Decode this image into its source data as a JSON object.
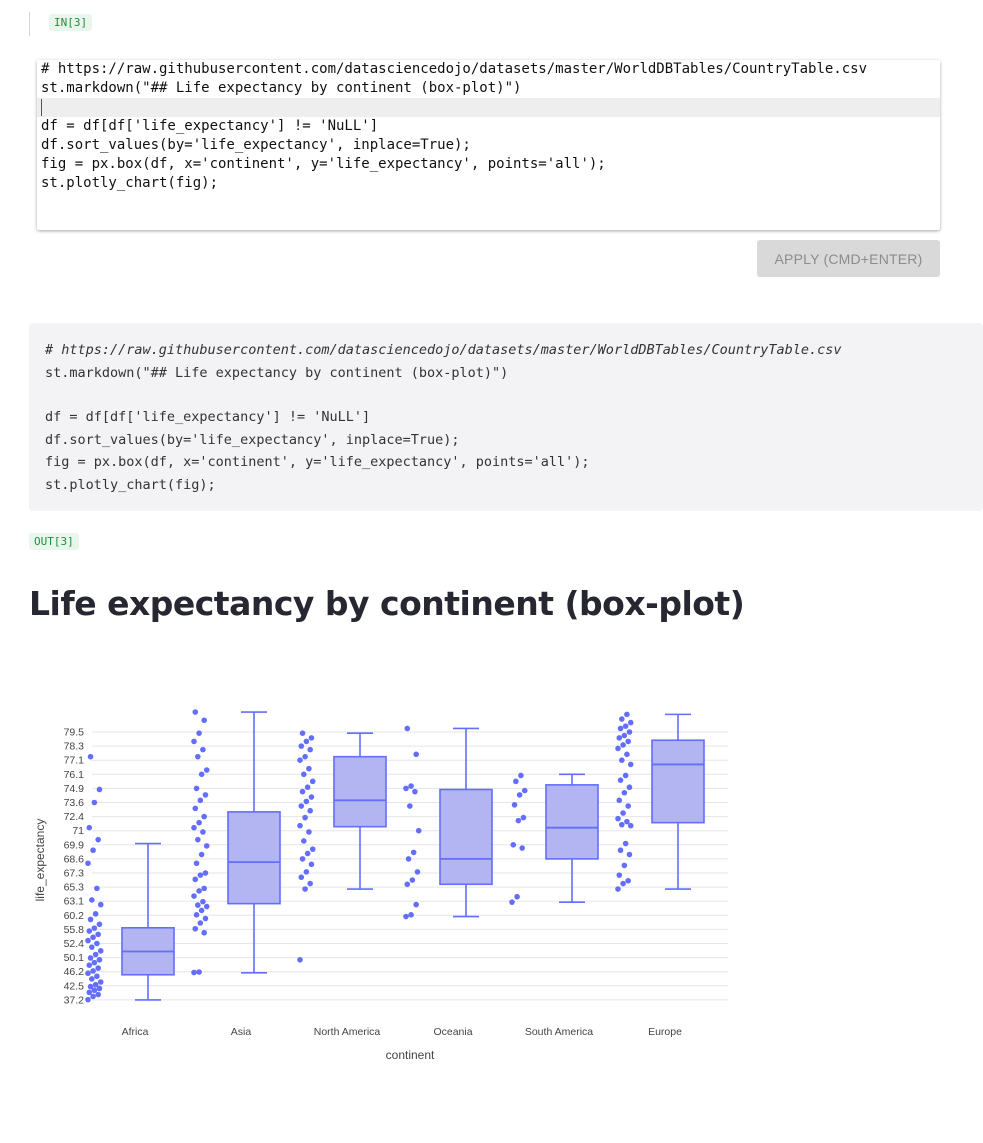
{
  "cell": {
    "in_label": "IN[3]",
    "out_label": "OUT[3]",
    "apply_label": "APPLY (CMD+ENTER)"
  },
  "editor_lines": [
    "# https://raw.githubusercontent.com/datasciencedojo/datasets/master/WorldDBTables/CountryTable.csv",
    "st.markdown(\"## Life expectancy by continent (box-plot)\")",
    "",
    "df = df[df['life_expectancy'] != 'NuLL']",
    "df.sort_values(by='life_expectancy', inplace=True);",
    "fig = px.box(df, x='continent', y='life_expectancy', points='all');",
    "st.plotly_chart(fig);"
  ],
  "rendered_code_lines": [
    "# https://raw.githubusercontent.com/datasciencedojo/datasets/master/WorldDBTables/CountryTable.csv",
    "st.markdown(\"## Life expectancy by continent (box-plot)\")",
    "",
    "df = df[df['life_expectancy'] != 'NuLL']",
    "df.sort_values(by='life_expectancy', inplace=True);",
    "fig = px.box(df, x='continent', y='life_expectancy', points='all');",
    "st.plotly_chart(fig);"
  ],
  "output": {
    "heading": "Life expectancy by continent (box-plot)"
  },
  "colors": {
    "box_fill": "#b3b5f2",
    "box_line": "#636efa",
    "point": "#636efa",
    "grid": "#e5e5e5"
  },
  "chart_data": {
    "type": "box",
    "xlabel": "continent",
    "ylabel": "life_expectancy",
    "yticks": [
      "37.2",
      "42.5",
      "46.2",
      "50.1",
      "52.4",
      "55.8",
      "60.2",
      "63.1",
      "65.3",
      "67.3",
      "68.6",
      "69.9",
      "71",
      "72.4",
      "73.6",
      "74.9",
      "76.1",
      "77.1",
      "78.3",
      "79.5"
    ],
    "categories": [
      "Africa",
      "Asia",
      "North America",
      "Oceania",
      "South America",
      "Europe"
    ],
    "boxes": [
      {
        "name": "Africa",
        "min": 37.2,
        "q1": 45.4,
        "median": 51.1,
        "q3": 56.3,
        "max": 70.0
      },
      {
        "name": "Asia",
        "min": 45.9,
        "q1": 62.6,
        "median": 68.3,
        "q3": 72.8,
        "max": 81.2
      },
      {
        "name": "North America",
        "min": 65.0,
        "q1": 71.4,
        "median": 73.8,
        "q3": 77.4,
        "max": 79.4
      },
      {
        "name": "Oceania",
        "min": 59.8,
        "q1": 65.7,
        "median": 68.6,
        "q3": 74.8,
        "max": 79.8
      },
      {
        "name": "South America",
        "min": 62.9,
        "q1": 68.6,
        "median": 71.3,
        "q3": 75.2,
        "max": 76.1
      },
      {
        "name": "Europe",
        "min": 65.0,
        "q1": 71.8,
        "median": 76.8,
        "q3": 78.8,
        "max": 81.0
      }
    ],
    "points": [
      [
        37.3,
        38.5,
        39.2,
        40.0,
        40.8,
        41.5,
        42.2,
        42.8,
        43.5,
        44.3,
        45.0,
        45.8,
        46.4,
        47.2,
        48.0,
        48.7,
        49.5,
        50.0,
        50.6,
        51.2,
        51.8,
        52.4,
        53.1,
        53.9,
        54.6,
        55.4,
        56.2,
        57.4,
        58.9,
        60.5,
        62.4,
        63.3,
        65.1,
        68.2,
        69.4,
        70.3,
        71.3,
        73.6,
        74.8,
        77.4
      ],
      [
        46.0,
        46.1,
        55.0,
        56.0,
        57.8,
        59.2,
        60.3,
        61.2,
        62.0,
        62.3,
        63.0,
        63.9,
        64.7,
        65.1,
        66.4,
        67.0,
        67.3,
        68.2,
        69.0,
        69.8,
        70.3,
        70.9,
        71.3,
        71.8,
        72.4,
        73.1,
        73.8,
        74.3,
        74.9,
        76.1,
        76.4,
        77.4,
        78.0,
        78.7,
        79.4,
        80.5,
        81.2
      ],
      [
        49.5,
        65.0,
        65.8,
        66.7,
        67.4,
        68.1,
        68.6,
        69.1,
        69.5,
        70.2,
        70.9,
        71.5,
        72.3,
        72.9,
        73.3,
        73.7,
        74.1,
        74.6,
        75.0,
        75.5,
        76.1,
        76.5,
        77.1,
        77.4,
        78.0,
        78.3,
        78.7,
        79.0,
        79.4
      ],
      [
        59.8,
        60.3,
        62.4,
        65.7,
        66.3,
        67.4,
        68.6,
        69.2,
        71.0,
        73.3,
        74.6,
        74.9,
        75.1,
        77.6,
        79.8
      ],
      [
        62.9,
        63.8,
        69.6,
        69.9,
        72.0,
        72.3,
        73.4,
        74.3,
        74.7,
        75.5,
        76.0
      ],
      [
        65.0,
        65.8,
        66.2,
        67.0,
        68.0,
        69.0,
        69.4,
        70.0,
        71.5,
        71.6,
        71.9,
        72.2,
        72.7,
        73.3,
        73.8,
        74.5,
        75.0,
        75.6,
        76.0,
        76.8,
        77.1,
        77.6,
        78.1,
        78.4,
        78.7,
        79.0,
        79.2,
        79.5,
        79.8,
        80.0,
        80.3,
        80.6,
        81.0
      ]
    ]
  }
}
